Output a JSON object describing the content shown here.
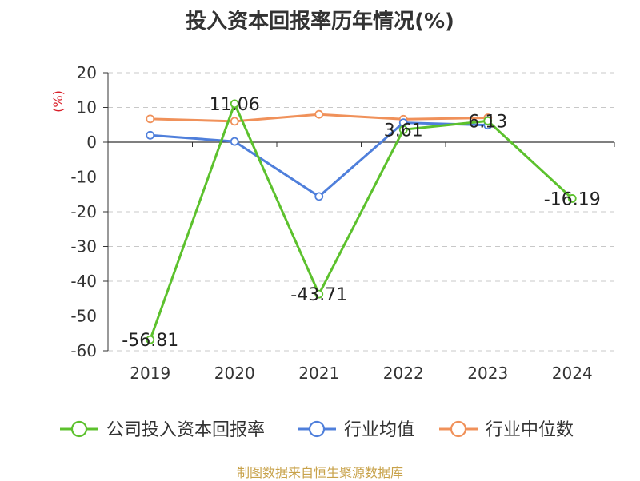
{
  "title": "投入资本回报率历年情况(%)",
  "source": "制图数据来自恒生聚源数据库",
  "chart_data": {
    "type": "line",
    "title": "投入资本回报率历年情况(%)",
    "ylabel": "(%)",
    "categories": [
      "2019",
      "2020",
      "2021",
      "2022",
      "2023",
      "2024"
    ],
    "ylim": [
      -60,
      20
    ],
    "yticks": [
      20,
      10,
      0,
      -10,
      -20,
      -30,
      -40,
      -50,
      -60
    ],
    "grid": true,
    "legend_position": "bottom",
    "series": [
      {
        "name": "公司投入资本回报率",
        "color": "#5cc12d",
        "values": [
          -56.81,
          11.06,
          -43.71,
          3.61,
          6.13,
          -16.19
        ],
        "labels": [
          "-56.81",
          "11.06",
          "-43.71",
          "3.61",
          "6.13",
          "-16.19"
        ]
      },
      {
        "name": "行业均值",
        "color": "#4f7fdb",
        "values": [
          2.0,
          0.2,
          -15.6,
          5.6,
          4.9,
          null
        ]
      },
      {
        "name": "行业中位数",
        "color": "#f0915a",
        "values": [
          6.7,
          6.0,
          8.0,
          6.6,
          7.0,
          null
        ]
      }
    ]
  }
}
